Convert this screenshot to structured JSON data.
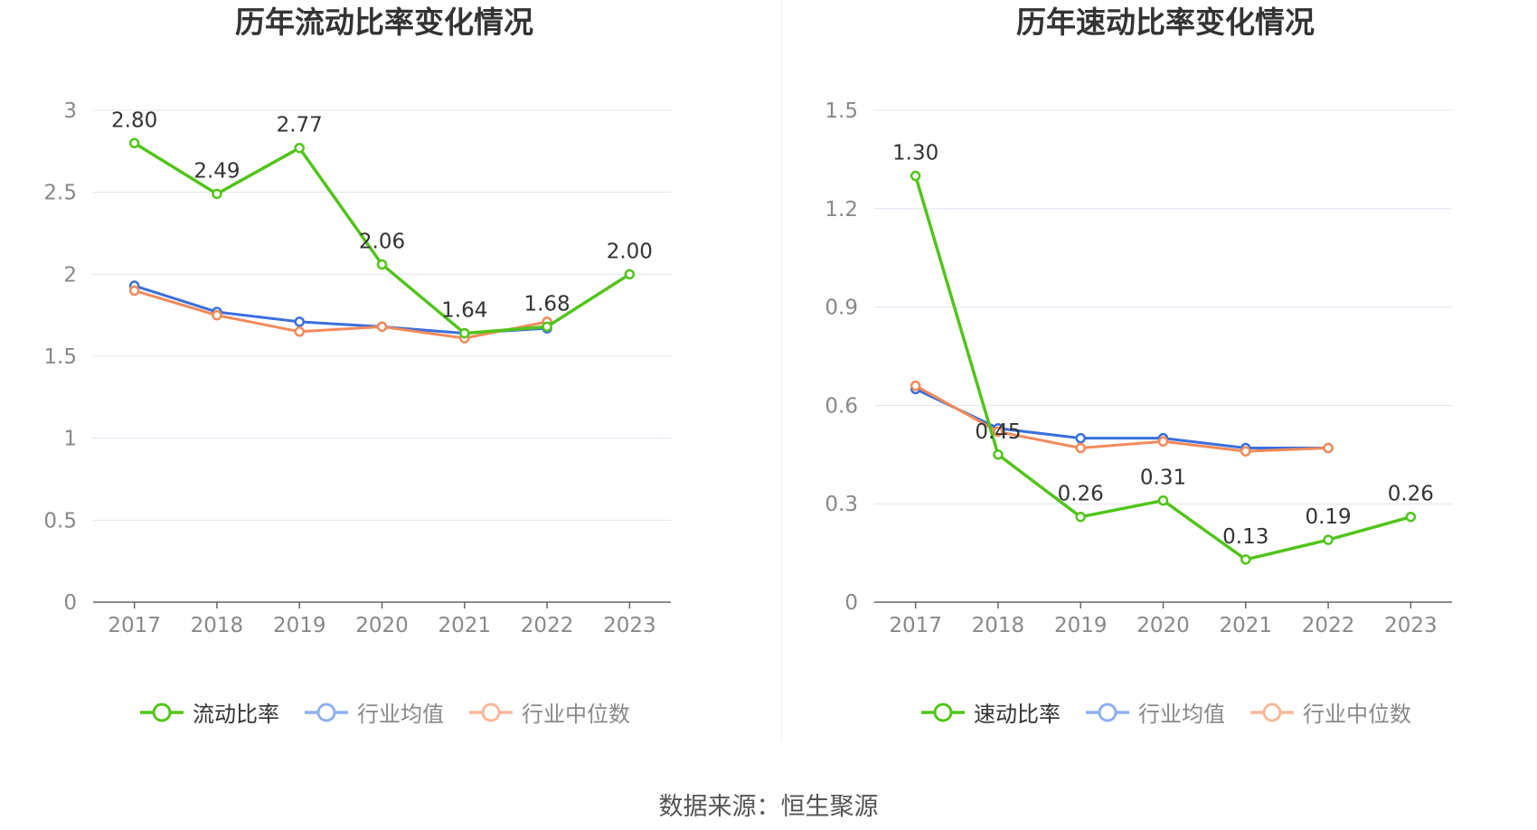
{
  "colors": {
    "main": "#52c41a",
    "avg": "#3a6fdc",
    "median": "#f28a5a",
    "avg_legend": "#8fb0ee",
    "median_legend": "#f7b899",
    "grid": "#dfe4f2",
    "axis": "#666666",
    "tick_text": "#888888",
    "label_text": "#333333"
  },
  "source": "数据来源：恒生聚源",
  "chart_data": [
    {
      "type": "line",
      "title": "历年流动比率变化情况",
      "categories": [
        "2017",
        "2018",
        "2019",
        "2020",
        "2021",
        "2022",
        "2023"
      ],
      "ylim": [
        0,
        3
      ],
      "yticks": [
        "0",
        "0.5",
        "1",
        "1.5",
        "2",
        "2.5",
        "3"
      ],
      "grid": true,
      "legend_position": "bottom",
      "series": [
        {
          "name": "流动比率",
          "values": [
            2.8,
            2.49,
            2.77,
            2.06,
            1.64,
            1.68,
            2.0
          ],
          "labels": [
            "2.80",
            "2.49",
            "2.77",
            "2.06",
            "1.64",
            "1.68",
            "2.00"
          ]
        },
        {
          "name": "行业均值",
          "values": [
            1.93,
            1.77,
            1.71,
            1.68,
            1.64,
            1.67,
            null
          ]
        },
        {
          "name": "行业中位数",
          "values": [
            1.9,
            1.75,
            1.65,
            1.68,
            1.61,
            1.71,
            null
          ]
        }
      ]
    },
    {
      "type": "line",
      "title": "历年速动比率变化情况",
      "categories": [
        "2017",
        "2018",
        "2019",
        "2020",
        "2021",
        "2022",
        "2023"
      ],
      "ylim": [
        0,
        1.5
      ],
      "yticks": [
        "0",
        "0.3",
        "0.6",
        "0.9",
        "1.2",
        "1.5"
      ],
      "grid": true,
      "legend_position": "bottom",
      "series": [
        {
          "name": "速动比率",
          "values": [
            1.3,
            0.45,
            0.26,
            0.31,
            0.13,
            0.19,
            0.26
          ],
          "labels": [
            "1.30",
            "0.45",
            "0.26",
            "0.31",
            "0.13",
            "0.19",
            "0.26"
          ]
        },
        {
          "name": "行业均值",
          "values": [
            0.65,
            0.53,
            0.5,
            0.5,
            0.47,
            0.47,
            null
          ]
        },
        {
          "name": "行业中位数",
          "values": [
            0.66,
            0.52,
            0.47,
            0.49,
            0.46,
            0.47,
            null
          ]
        }
      ]
    }
  ]
}
